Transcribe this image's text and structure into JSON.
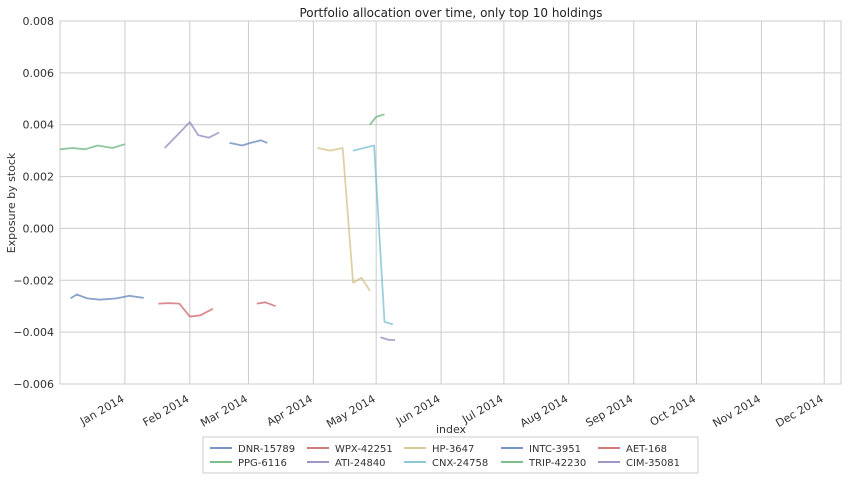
{
  "chart_data": {
    "type": "line",
    "title": "Portfolio allocation over time, only top 10 holdings",
    "xlabel": "index",
    "ylabel": "Exposure by stock",
    "ylim": [
      -0.006,
      0.008
    ],
    "yticks": [
      -0.006,
      -0.004,
      -0.002,
      0.0,
      0.002,
      0.004,
      0.006,
      0.008
    ],
    "ytick_labels": [
      "−0.006",
      "−0.004",
      "−0.002",
      "0.000",
      "0.002",
      "0.004",
      "0.006",
      "0.008"
    ],
    "xlim": [
      "2013-12-01",
      "2014-12-09"
    ],
    "xticks": [
      "2014-01-01",
      "2014-02-01",
      "2014-03-01",
      "2014-04-01",
      "2014-05-01",
      "2014-06-01",
      "2014-07-01",
      "2014-08-01",
      "2014-09-01",
      "2014-10-01",
      "2014-11-01",
      "2014-12-01"
    ],
    "xtick_labels": [
      "Jan 2014",
      "Feb 2014",
      "Mar 2014",
      "Apr 2014",
      "May 2014",
      "Jun 2014",
      "Jul 2014",
      "Aug 2014",
      "Sep 2014",
      "Oct 2014",
      "Nov 2014",
      "Dec 2014"
    ],
    "grid": true,
    "legend_position": "bottom-center",
    "series": [
      {
        "name": "DNR-15789",
        "color": "#4c72b0",
        "points": [
          [
            "2013-12-06",
            -0.0027
          ],
          [
            "2013-12-09",
            -0.00255
          ],
          [
            "2013-12-14",
            -0.0027
          ],
          [
            "2013-12-20",
            -0.00275
          ],
          [
            "2013-12-28",
            -0.0027
          ],
          [
            "2014-01-03",
            -0.0026
          ],
          [
            "2014-01-10",
            -0.00268
          ]
        ]
      },
      {
        "name": "PPG-6116",
        "color": "#55a868",
        "points": [
          [
            "2013-12-01",
            0.00305
          ],
          [
            "2013-12-07",
            0.0031
          ],
          [
            "2013-12-13",
            0.00305
          ],
          [
            "2013-12-19",
            0.0032
          ],
          [
            "2013-12-26",
            0.0031
          ],
          [
            "2014-01-01",
            0.00325
          ]
        ]
      },
      {
        "name": "WPX-42251",
        "color": "#c44e52",
        "points": [
          [
            "2014-01-17",
            -0.0029
          ],
          [
            "2014-01-22",
            -0.00288
          ],
          [
            "2014-01-27",
            -0.0029
          ],
          [
            "2014-02-01",
            -0.0034
          ],
          [
            "2014-02-06",
            -0.00335
          ],
          [
            "2014-02-12",
            -0.0031
          ]
        ]
      },
      {
        "name": "ATI-24840",
        "color": "#8172b2",
        "points": [
          [
            "2014-01-20",
            0.0031
          ],
          [
            "2014-01-26",
            0.0036
          ],
          [
            "2014-02-01",
            0.0041
          ],
          [
            "2014-02-05",
            0.0036
          ],
          [
            "2014-02-10",
            0.0035
          ],
          [
            "2014-02-15",
            0.0037
          ]
        ]
      },
      {
        "name": "HP-3647",
        "color": "#ccb974",
        "points": [
          [
            "2014-04-03",
            0.0031
          ],
          [
            "2014-04-09",
            0.003
          ],
          [
            "2014-04-15",
            0.0031
          ],
          [
            "2014-04-20",
            -0.0021
          ],
          [
            "2014-04-24",
            -0.0019
          ],
          [
            "2014-04-28",
            -0.0024
          ]
        ]
      },
      {
        "name": "CNX-24758",
        "color": "#64b5cd",
        "points": [
          [
            "2014-04-20",
            0.003
          ],
          [
            "2014-04-25",
            0.0031
          ],
          [
            "2014-04-30",
            0.0032
          ],
          [
            "2014-05-05",
            -0.0036
          ],
          [
            "2014-05-09",
            -0.0037
          ]
        ]
      },
      {
        "name": "INTC-3951",
        "color": "#4c72b0",
        "points": [
          [
            "2014-02-20",
            0.0033
          ],
          [
            "2014-02-26",
            0.0032
          ],
          [
            "2014-03-02",
            0.0033
          ],
          [
            "2014-03-07",
            0.0034
          ],
          [
            "2014-03-10",
            0.0033
          ]
        ]
      },
      {
        "name": "TRIP-42230",
        "color": "#55a868",
        "points": [
          [
            "2014-04-28",
            0.004
          ],
          [
            "2014-05-01",
            0.0043
          ],
          [
            "2014-05-05",
            0.0044
          ]
        ]
      },
      {
        "name": "AET-168",
        "color": "#c44e52",
        "points": [
          [
            "2014-03-05",
            -0.0029
          ],
          [
            "2014-03-09",
            -0.00285
          ],
          [
            "2014-03-14",
            -0.003
          ]
        ]
      },
      {
        "name": "CIM-35081",
        "color": "#8172b2",
        "points": [
          [
            "2014-05-03",
            -0.0042
          ],
          [
            "2014-05-07",
            -0.0043
          ],
          [
            "2014-05-10",
            -0.0043
          ]
        ]
      }
    ]
  },
  "legend": {
    "items": [
      {
        "label": "DNR-15789",
        "color": "#4c72b0"
      },
      {
        "label": "PPG-6116",
        "color": "#55a868"
      },
      {
        "label": "WPX-42251",
        "color": "#c44e52"
      },
      {
        "label": "ATI-24840",
        "color": "#8172b2"
      },
      {
        "label": "HP-3647",
        "color": "#ccb974"
      },
      {
        "label": "CNX-24758",
        "color": "#64b5cd"
      },
      {
        "label": "INTC-3951",
        "color": "#4c72b0"
      },
      {
        "label": "TRIP-42230",
        "color": "#55a868"
      },
      {
        "label": "AET-168",
        "color": "#c44e52"
      },
      {
        "label": "CIM-35081",
        "color": "#8172b2"
      }
    ]
  }
}
